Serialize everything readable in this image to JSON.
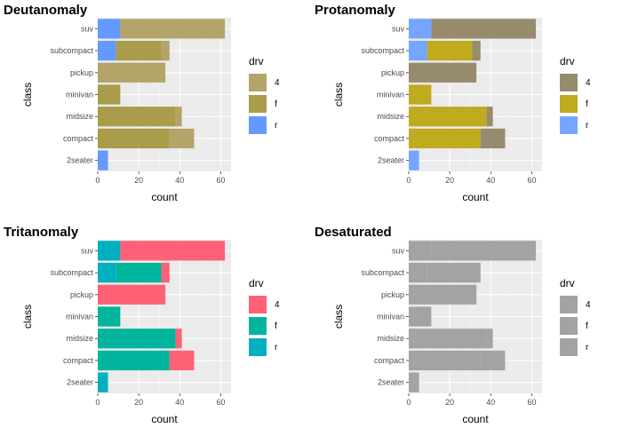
{
  "chart_data": [
    {
      "type": "bar",
      "stacked": true,
      "orientation": "horizontal",
      "title": "Deutanomaly",
      "xlabel": "count",
      "ylabel": "class",
      "categories": [
        "2seater",
        "compact",
        "midsize",
        "minivan",
        "pickup",
        "subcompact",
        "suv"
      ],
      "xlim": [
        0,
        65
      ],
      "xticks": [
        0,
        20,
        40,
        60
      ],
      "legend": {
        "title": "drv",
        "position": "right"
      },
      "series": [
        {
          "name": "4",
          "color": "#b3a46a",
          "values": [
            0,
            12,
            3,
            0,
            33,
            4,
            51
          ]
        },
        {
          "name": "f",
          "color": "#a99c4a",
          "values": [
            0,
            35,
            38,
            11,
            0,
            22,
            0
          ]
        },
        {
          "name": "r",
          "color": "#6699ff",
          "values": [
            5,
            0,
            0,
            0,
            0,
            9,
            11
          ]
        }
      ]
    },
    {
      "type": "bar",
      "stacked": true,
      "orientation": "horizontal",
      "title": "Protanomaly",
      "xlabel": "count",
      "ylabel": "class",
      "categories": [
        "2seater",
        "compact",
        "midsize",
        "minivan",
        "pickup",
        "subcompact",
        "suv"
      ],
      "xlim": [
        0,
        65
      ],
      "xticks": [
        0,
        20,
        40,
        60
      ],
      "legend": {
        "title": "drv",
        "position": "right"
      },
      "series": [
        {
          "name": "4",
          "color": "#978b6e",
          "values": [
            0,
            12,
            3,
            0,
            33,
            4,
            51
          ]
        },
        {
          "name": "f",
          "color": "#bfaa20",
          "values": [
            0,
            35,
            38,
            11,
            0,
            22,
            0
          ]
        },
        {
          "name": "r",
          "color": "#74a6ff",
          "values": [
            5,
            0,
            0,
            0,
            0,
            9,
            11
          ]
        }
      ]
    },
    {
      "type": "bar",
      "stacked": true,
      "orientation": "horizontal",
      "title": "Tritanomaly",
      "xlabel": "count",
      "ylabel": "class",
      "categories": [
        "2seater",
        "compact",
        "midsize",
        "minivan",
        "pickup",
        "subcompact",
        "suv"
      ],
      "xlim": [
        0,
        65
      ],
      "xticks": [
        0,
        20,
        40,
        60
      ],
      "legend": {
        "title": "drv",
        "position": "right"
      },
      "series": [
        {
          "name": "4",
          "color": "#ff6176",
          "values": [
            0,
            12,
            3,
            0,
            33,
            4,
            51
          ]
        },
        {
          "name": "f",
          "color": "#00b59c",
          "values": [
            0,
            35,
            38,
            11,
            0,
            22,
            0
          ]
        },
        {
          "name": "r",
          "color": "#00b0c0",
          "values": [
            5,
            0,
            0,
            0,
            0,
            9,
            11
          ]
        }
      ]
    },
    {
      "type": "bar",
      "stacked": true,
      "orientation": "horizontal",
      "title": "Desaturated",
      "xlabel": "count",
      "ylabel": "class",
      "categories": [
        "2seater",
        "compact",
        "midsize",
        "minivan",
        "pickup",
        "subcompact",
        "suv"
      ],
      "xlim": [
        0,
        65
      ],
      "xticks": [
        0,
        20,
        40,
        60
      ],
      "legend": {
        "title": "drv",
        "position": "right"
      },
      "series": [
        {
          "name": "4",
          "color": "#a3a3a3",
          "values": [
            0,
            12,
            3,
            0,
            33,
            4,
            51
          ]
        },
        {
          "name": "f",
          "color": "#a3a3a3",
          "values": [
            0,
            35,
            38,
            11,
            0,
            22,
            0
          ]
        },
        {
          "name": "r",
          "color": "#a3a3a3",
          "values": [
            5,
            0,
            0,
            0,
            0,
            9,
            11
          ]
        }
      ]
    }
  ]
}
